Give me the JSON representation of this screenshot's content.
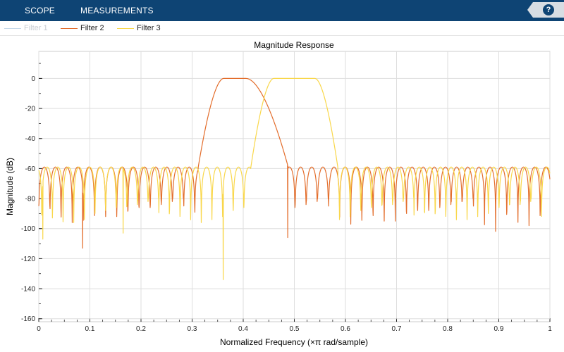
{
  "toolstrip": {
    "tabs": [
      "SCOPE",
      "MEASUREMENTS"
    ],
    "help_label": "?"
  },
  "legend": {
    "items": [
      {
        "label": "Filter 1",
        "color": "#0072bd",
        "visible": false
      },
      {
        "label": "Filter 2",
        "color": "#e36d2b",
        "visible": true
      },
      {
        "label": "Filter 3",
        "color": "#f9d74a",
        "visible": true
      }
    ]
  },
  "chart_data": {
    "type": "line",
    "title": "Magnitude Response",
    "xlabel": "Normalized Frequency (×π rad/sample)",
    "ylabel": "Magnitude (dB)",
    "xlim": [
      0,
      1
    ],
    "ylim": [
      -162,
      18
    ],
    "xticks": [
      0,
      0.1,
      0.2,
      0.3,
      0.4,
      0.5,
      0.6,
      0.7,
      0.8,
      0.9,
      1
    ],
    "xtick_labels": [
      "0",
      "0.1",
      "0.2",
      "0.3",
      "0.4",
      "0.5",
      "0.6",
      "0.7",
      "0.8",
      "0.9",
      "1"
    ],
    "yticks": [
      0,
      -20,
      -40,
      -60,
      -80,
      -100,
      -120,
      -140,
      -160
    ],
    "ytick_labels": [
      "0",
      "-20",
      "-40",
      "-60",
      "-80",
      "-100",
      "-120",
      "-140",
      "-160"
    ],
    "grid": true,
    "series": [
      {
        "name": "Filter 2",
        "color": "#e36d2b",
        "passband": [
          0.362,
          0.405
        ],
        "transition": [
          [
            0.312,
            0.362
          ],
          [
            0.405,
            0.488
          ]
        ],
        "passband_level_db": 0,
        "stopband_peak_db": -59,
        "ripple_period": 0.0218,
        "ripple_phase": 0.0,
        "null_depths_db": [
          -85,
          -112,
          -97,
          -96,
          -98,
          -95,
          -92,
          -90,
          -88,
          -86,
          -84,
          -82,
          -80
        ],
        "deep_nulls": [
          [
            0.086,
            -113
          ],
          [
            0.487,
            -106
          ]
        ]
      },
      {
        "name": "Filter 3",
        "color": "#f9d74a",
        "passband": [
          0.46,
          0.54
        ],
        "transition": [
          [
            0.415,
            0.46
          ],
          [
            0.54,
            0.585
          ]
        ],
        "passband_level_db": 0,
        "stopband_peak_db": -59,
        "ripple_period": 0.0208,
        "ripple_phase": 0.006,
        "null_depths_db": [
          -106,
          -98,
          -96,
          -94,
          -92,
          -90,
          -88,
          -86,
          -84,
          -82,
          -80,
          -102
        ],
        "deep_nulls": [
          [
            0.361,
            -134
          ],
          [
            0.165,
            -103
          ],
          [
            0.008,
            -107
          ]
        ]
      }
    ]
  }
}
